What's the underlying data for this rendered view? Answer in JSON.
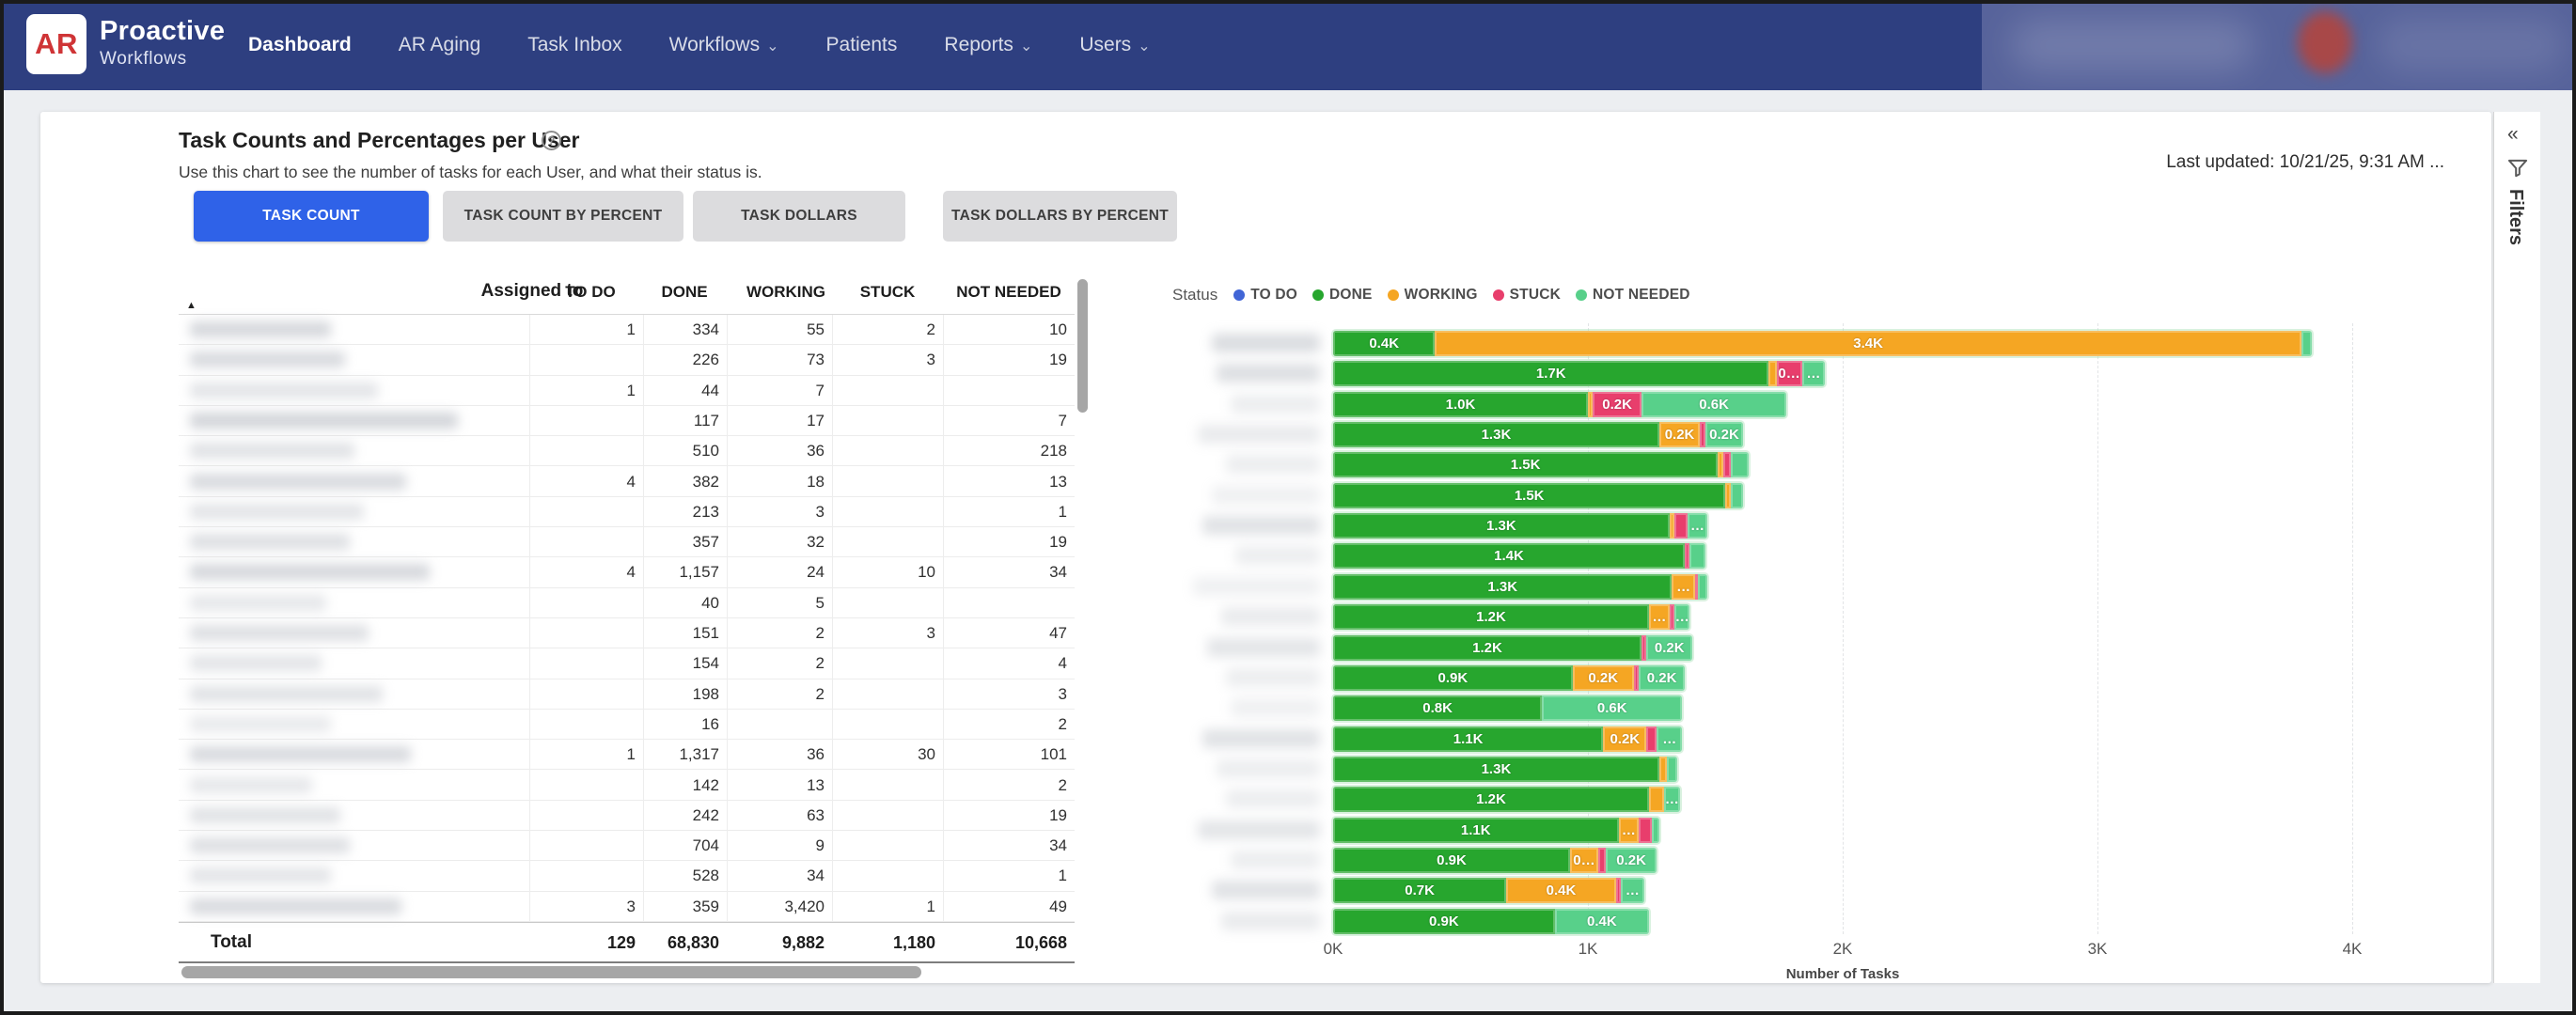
{
  "navbar": {
    "logo_text": "AR",
    "brand_line1": "Proactive",
    "brand_line2": "Workflows",
    "brand_navy": "#2e3f80",
    "logo_red": "#cf3436",
    "items": [
      {
        "label": "Dashboard",
        "active": true,
        "dropdown": false
      },
      {
        "label": "AR Aging",
        "active": false,
        "dropdown": false
      },
      {
        "label": "Task Inbox",
        "active": false,
        "dropdown": false
      },
      {
        "label": "Workflows",
        "active": false,
        "dropdown": true
      },
      {
        "label": "Patients",
        "active": false,
        "dropdown": false
      },
      {
        "label": "Reports",
        "active": false,
        "dropdown": true
      },
      {
        "label": "Users",
        "active": false,
        "dropdown": true
      }
    ],
    "account_area": "blurred user info with avatar"
  },
  "header": {
    "title": "Task Counts and Percentages per User",
    "info_icon": "?",
    "subtitle": "Use this chart to see the number of tasks for each User, and what their status is.",
    "last_updated": "Last updated: 10/21/25, 9:31 AM ...",
    "accent_blue": "#2f62e8",
    "view_buttons": [
      {
        "label": "TASK COUNT",
        "active": true
      },
      {
        "label": "TASK COUNT BY PERCENT",
        "active": false
      },
      {
        "label": "TASK DOLLARS",
        "active": false
      },
      {
        "label": "TASK DOLLARS BY PERCENT",
        "active": false
      }
    ]
  },
  "table": {
    "columns": [
      "Assigned to",
      "TO DO",
      "DONE",
      "WORKING",
      "STUCK",
      "NOT NEEDED"
    ],
    "sort_indicator": "▲",
    "assigned_names_redacted": "user names blurred in screenshot",
    "rows": [
      [
        "1",
        "334",
        "55",
        "2",
        "10"
      ],
      [
        "",
        "226",
        "73",
        "3",
        "19"
      ],
      [
        "1",
        "44",
        "7",
        "",
        ""
      ],
      [
        "",
        "117",
        "17",
        "",
        "7"
      ],
      [
        "",
        "510",
        "36",
        "",
        "218"
      ],
      [
        "4",
        "382",
        "18",
        "",
        "13"
      ],
      [
        "",
        "213",
        "3",
        "",
        "1"
      ],
      [
        "",
        "357",
        "32",
        "",
        "19"
      ],
      [
        "4",
        "1,157",
        "24",
        "10",
        "34"
      ],
      [
        "",
        "40",
        "5",
        "",
        ""
      ],
      [
        "",
        "151",
        "2",
        "3",
        "47"
      ],
      [
        "",
        "154",
        "2",
        "",
        "4"
      ],
      [
        "",
        "198",
        "2",
        "",
        "3"
      ],
      [
        "",
        "16",
        "",
        "",
        "2"
      ],
      [
        "1",
        "1,317",
        "36",
        "30",
        "101"
      ],
      [
        "",
        "142",
        "13",
        "",
        "2"
      ],
      [
        "",
        "242",
        "63",
        "",
        "19"
      ],
      [
        "",
        "704",
        "9",
        "",
        "34"
      ],
      [
        "",
        "528",
        "34",
        "",
        "1"
      ],
      [
        "3",
        "359",
        "3,420",
        "1",
        "49"
      ]
    ],
    "total_label": "Total",
    "totals": [
      "129",
      "68,830",
      "9,882",
      "1,180",
      "10,668"
    ]
  },
  "filters_panel": {
    "label": "Filters",
    "collapse_icon": "«"
  },
  "chart_data": {
    "type": "bar",
    "orientation": "horizontal",
    "stacked": true,
    "legend_title": "Status",
    "legend_position": "top",
    "grid": "vertical dashed",
    "xlabel": "Number of Tasks",
    "x_ticks": [
      "0K",
      "1K",
      "2K",
      "3K",
      "4K"
    ],
    "xlim_k": [
      0,
      4
    ],
    "status_colors": {
      "TO DO": "#4165d6",
      "DONE": "#27a62e",
      "WORKING": "#f5a623",
      "STUCK": "#e83e6c",
      "NOT NEEDED": "#58d08a"
    },
    "legend_entries": [
      "TO DO",
      "DONE",
      "WORKING",
      "STUCK",
      "NOT NEEDED"
    ],
    "categories": [
      "[blurred]",
      "[blurred]",
      "[blurred]",
      "[blurred]",
      "[blurred]",
      "[blurred]",
      "[blurred]",
      "[blurred]",
      "[blurred]",
      "[blurred]",
      "[blurred]",
      "[blurred]",
      "[blurred]",
      "[blurred]",
      "[blurred]",
      "[blurred]",
      "[blurred]",
      "[blurred]",
      "[blurred]",
      "[blurred]"
    ],
    "values_unit": "thousands of tasks (K)",
    "bars": [
      {
        "segments": [
          {
            "s": "DONE",
            "v": 0.4,
            "l": "0.4K"
          },
          {
            "s": "WORKING",
            "v": 3.4,
            "l": "3.4K"
          },
          {
            "s": "NOT NEEDED",
            "v": 0.04,
            "l": ""
          }
        ]
      },
      {
        "segments": [
          {
            "s": "DONE",
            "v": 1.71,
            "l": "1.7K"
          },
          {
            "s": "WORKING",
            "v": 0.03,
            "l": ""
          },
          {
            "s": "STUCK",
            "v": 0.1,
            "l": "0…"
          },
          {
            "s": "NOT NEEDED",
            "v": 0.09,
            "l": "…"
          }
        ]
      },
      {
        "segments": [
          {
            "s": "DONE",
            "v": 1.0,
            "l": "1.0K"
          },
          {
            "s": "WORKING",
            "v": 0.02,
            "l": ""
          },
          {
            "s": "STUCK",
            "v": 0.19,
            "l": "0.2K"
          },
          {
            "s": "NOT NEEDED",
            "v": 0.57,
            "l": "0.6K"
          }
        ]
      },
      {
        "segments": [
          {
            "s": "DONE",
            "v": 1.28,
            "l": "1.3K"
          },
          {
            "s": "WORKING",
            "v": 0.16,
            "l": "0.2K"
          },
          {
            "s": "STUCK",
            "v": 0.02,
            "l": ""
          },
          {
            "s": "NOT NEEDED",
            "v": 0.15,
            "l": "0.2K"
          }
        ]
      },
      {
        "segments": [
          {
            "s": "DONE",
            "v": 1.51,
            "l": "1.5K"
          },
          {
            "s": "WORKING",
            "v": 0.02,
            "l": ""
          },
          {
            "s": "STUCK",
            "v": 0.03,
            "l": ""
          },
          {
            "s": "NOT NEEDED",
            "v": 0.07,
            "l": ""
          }
        ]
      },
      {
        "segments": [
          {
            "s": "DONE",
            "v": 1.54,
            "l": "1.5K"
          },
          {
            "s": "WORKING",
            "v": 0.02,
            "l": ""
          },
          {
            "s": "NOT NEEDED",
            "v": 0.05,
            "l": ""
          }
        ]
      },
      {
        "segments": [
          {
            "s": "DONE",
            "v": 1.32,
            "l": "1.3K"
          },
          {
            "s": "WORKING",
            "v": 0.02,
            "l": ""
          },
          {
            "s": "STUCK",
            "v": 0.05,
            "l": ""
          },
          {
            "s": "NOT NEEDED",
            "v": 0.08,
            "l": "…"
          }
        ]
      },
      {
        "segments": [
          {
            "s": "DONE",
            "v": 1.38,
            "l": "1.4K"
          },
          {
            "s": "STUCK",
            "v": 0.02,
            "l": ""
          },
          {
            "s": "NOT NEEDED",
            "v": 0.06,
            "l": ""
          }
        ]
      },
      {
        "segments": [
          {
            "s": "DONE",
            "v": 1.33,
            "l": "1.3K"
          },
          {
            "s": "WORKING",
            "v": 0.09,
            "l": "…"
          },
          {
            "s": "STUCK",
            "v": 0.01,
            "l": ""
          },
          {
            "s": "NOT NEEDED",
            "v": 0.04,
            "l": ""
          }
        ]
      },
      {
        "segments": [
          {
            "s": "DONE",
            "v": 1.24,
            "l": "1.2K"
          },
          {
            "s": "WORKING",
            "v": 0.08,
            "l": "…"
          },
          {
            "s": "STUCK",
            "v": 0.02,
            "l": ""
          },
          {
            "s": "NOT NEEDED",
            "v": 0.06,
            "l": "…"
          }
        ]
      },
      {
        "segments": [
          {
            "s": "DONE",
            "v": 1.21,
            "l": "1.2K"
          },
          {
            "s": "STUCK",
            "v": 0.02,
            "l": ""
          },
          {
            "s": "NOT NEEDED",
            "v": 0.18,
            "l": "0.2K"
          }
        ]
      },
      {
        "segments": [
          {
            "s": "DONE",
            "v": 0.94,
            "l": "0.9K"
          },
          {
            "s": "WORKING",
            "v": 0.24,
            "l": "0.2K"
          },
          {
            "s": "STUCK",
            "v": 0.02,
            "l": ""
          },
          {
            "s": "NOT NEEDED",
            "v": 0.18,
            "l": "0.2K"
          }
        ]
      },
      {
        "segments": [
          {
            "s": "DONE",
            "v": 0.82,
            "l": "0.8K"
          },
          {
            "s": "NOT NEEDED",
            "v": 0.55,
            "l": "0.6K"
          }
        ]
      },
      {
        "segments": [
          {
            "s": "DONE",
            "v": 1.06,
            "l": "1.1K"
          },
          {
            "s": "WORKING",
            "v": 0.17,
            "l": "0.2K"
          },
          {
            "s": "STUCK",
            "v": 0.04,
            "l": ""
          },
          {
            "s": "NOT NEEDED",
            "v": 0.1,
            "l": "…"
          }
        ]
      },
      {
        "segments": [
          {
            "s": "DONE",
            "v": 1.28,
            "l": "1.3K"
          },
          {
            "s": "WORKING",
            "v": 0.03,
            "l": ""
          },
          {
            "s": "NOT NEEDED",
            "v": 0.04,
            "l": ""
          }
        ]
      },
      {
        "segments": [
          {
            "s": "DONE",
            "v": 1.24,
            "l": "1.2K"
          },
          {
            "s": "WORKING",
            "v": 0.06,
            "l": ""
          },
          {
            "s": "NOT NEEDED",
            "v": 0.06,
            "l": "…"
          }
        ]
      },
      {
        "segments": [
          {
            "s": "DONE",
            "v": 1.12,
            "l": "1.1K"
          },
          {
            "s": "WORKING",
            "v": 0.08,
            "l": "…"
          },
          {
            "s": "STUCK",
            "v": 0.05,
            "l": ""
          },
          {
            "s": "NOT NEEDED",
            "v": 0.03,
            "l": ""
          }
        ]
      },
      {
        "segments": [
          {
            "s": "DONE",
            "v": 0.93,
            "l": "0.9K"
          },
          {
            "s": "WORKING",
            "v": 0.11,
            "l": "0…"
          },
          {
            "s": "STUCK",
            "v": 0.03,
            "l": ""
          },
          {
            "s": "NOT NEEDED",
            "v": 0.2,
            "l": "0.2K"
          }
        ]
      },
      {
        "segments": [
          {
            "s": "DONE",
            "v": 0.68,
            "l": "0.7K"
          },
          {
            "s": "WORKING",
            "v": 0.43,
            "l": "0.4K"
          },
          {
            "s": "STUCK",
            "v": 0.02,
            "l": ""
          },
          {
            "s": "NOT NEEDED",
            "v": 0.09,
            "l": "…"
          }
        ]
      },
      {
        "segments": [
          {
            "s": "DONE",
            "v": 0.87,
            "l": "0.9K"
          },
          {
            "s": "NOT NEEDED",
            "v": 0.37,
            "l": "0.4K"
          }
        ]
      }
    ]
  }
}
